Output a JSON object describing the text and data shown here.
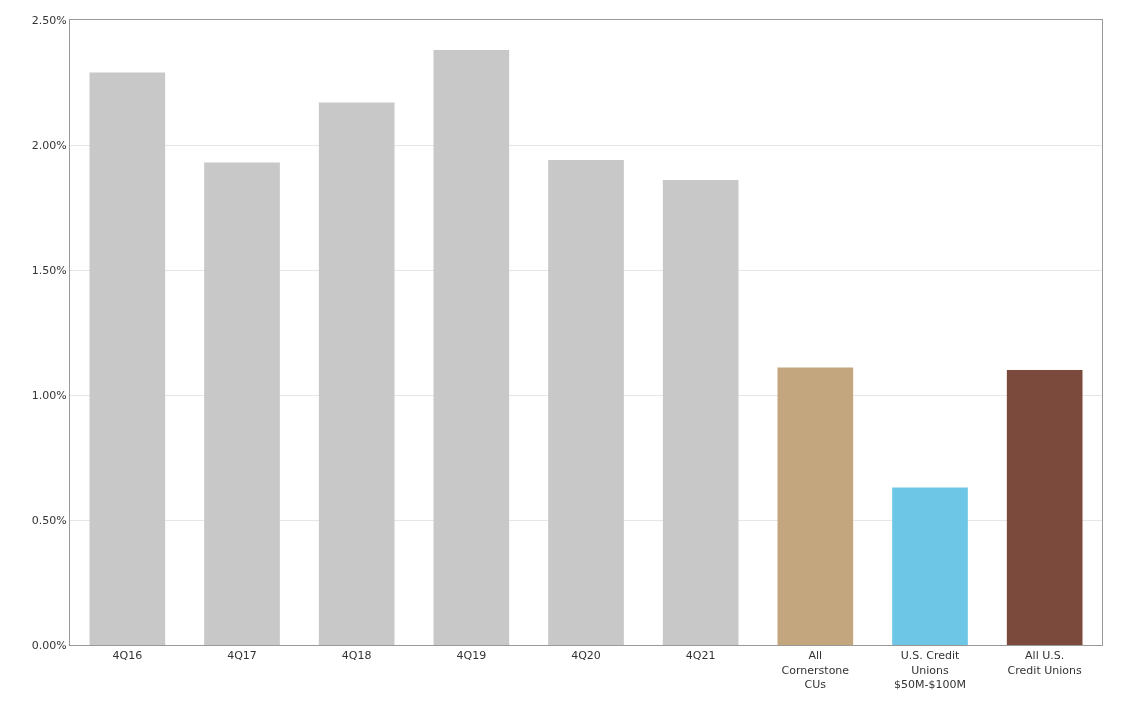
{
  "chart_data": {
    "type": "bar",
    "categories": [
      "4Q16",
      "4Q17",
      "4Q18",
      "4Q19",
      "4Q20",
      "4Q21",
      "All Cornerstone CUs",
      "U.S. Credit Unions $50M-$100M",
      "All U.S. Credit Unions"
    ],
    "values": [
      2.29,
      1.93,
      2.17,
      2.38,
      1.94,
      1.86,
      1.11,
      0.63,
      1.1
    ],
    "colors": [
      "#c8c8c8",
      "#c8c8c8",
      "#c8c8c8",
      "#c8c8c8",
      "#c8c8c8",
      "#c8c8c8",
      "#c4a67e",
      "#6ec6e6",
      "#7b4a3c"
    ],
    "ylim": [
      0,
      2.5
    ],
    "yticks": [
      {
        "value": 0,
        "label": "0.00%"
      },
      {
        "value": 0.5,
        "label": "0.50%"
      },
      {
        "value": 1,
        "label": "1.00%"
      },
      {
        "value": 1.5,
        "label": "1.50%"
      },
      {
        "value": 2,
        "label": "2.00%"
      },
      {
        "value": 2.5,
        "label": "2.50%"
      }
    ],
    "grid": "y"
  }
}
